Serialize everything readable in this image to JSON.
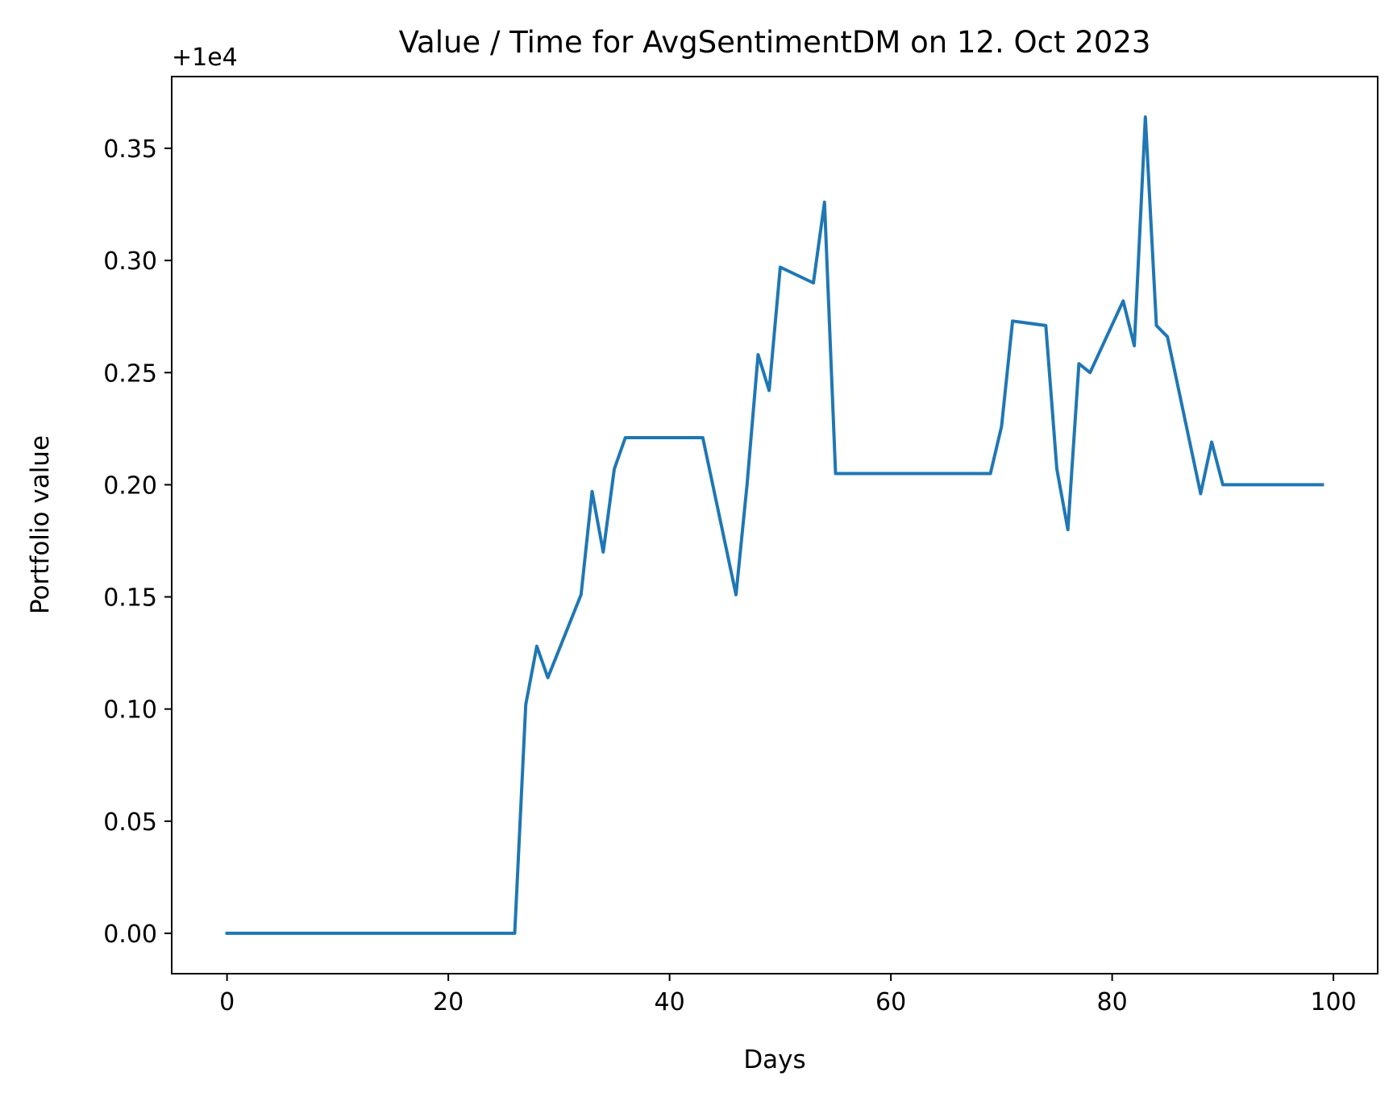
{
  "chart_data": {
    "type": "line",
    "title": "Value / Time for AvgSentimentDM on 12. Oct 2023",
    "xlabel": "Days",
    "ylabel": "Portfolio value",
    "offset_label": "+1e4",
    "xlim": [
      -5,
      104
    ],
    "ylim": [
      -0.018,
      0.382
    ],
    "xticks": [
      0,
      20,
      40,
      60,
      80,
      100
    ],
    "xtick_labels": [
      "0",
      "20",
      "40",
      "60",
      "80",
      "100"
    ],
    "yticks": [
      0.0,
      0.05,
      0.1,
      0.15,
      0.2,
      0.25,
      0.3,
      0.35
    ],
    "ytick_labels": [
      "0.00",
      "0.05",
      "0.10",
      "0.15",
      "0.20",
      "0.25",
      "0.30",
      "0.35"
    ],
    "grid": false,
    "line_color": "#1f77b4",
    "x": [
      0,
      26,
      27,
      28,
      29,
      32,
      33,
      34,
      35,
      36,
      43,
      46,
      47,
      48,
      49,
      50,
      53,
      54,
      55,
      69,
      70,
      71,
      74,
      75,
      76,
      77,
      78,
      81,
      82,
      83,
      84,
      85,
      88,
      89,
      90,
      99
    ],
    "series": [
      {
        "values": [
          0.0,
          0.0,
          0.102,
          0.128,
          0.114,
          0.151,
          0.197,
          0.17,
          0.207,
          0.221,
          0.221,
          0.151,
          0.2,
          0.258,
          0.242,
          0.297,
          0.29,
          0.326,
          0.205,
          0.205,
          0.226,
          0.273,
          0.271,
          0.207,
          0.18,
          0.254,
          0.25,
          0.282,
          0.262,
          0.364,
          0.271,
          0.266,
          0.196,
          0.219,
          0.2,
          0.2
        ]
      }
    ]
  }
}
